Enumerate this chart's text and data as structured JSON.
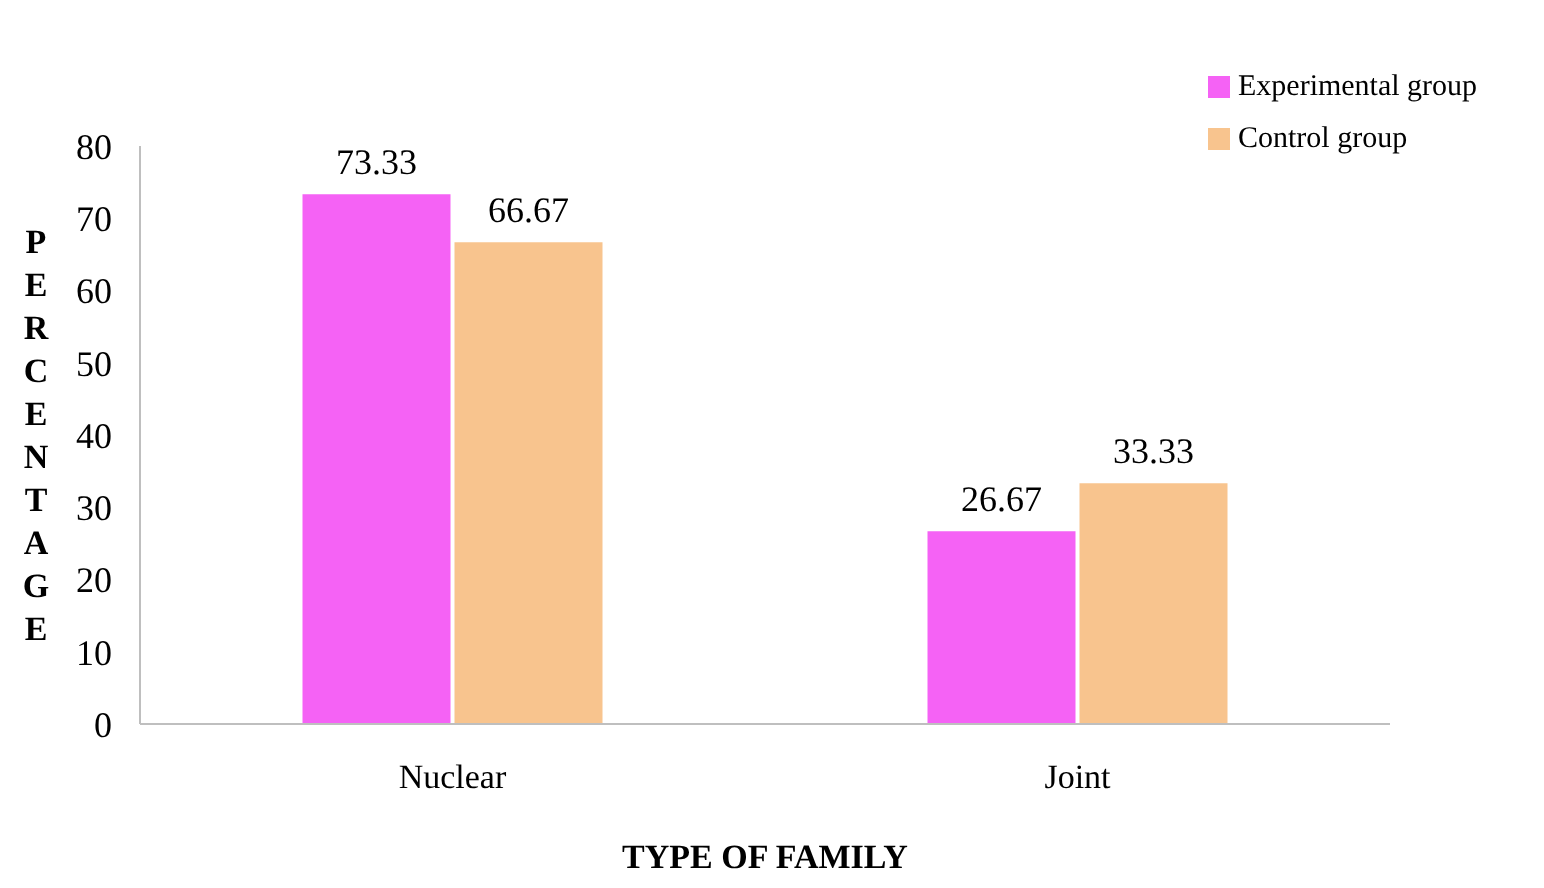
{
  "chart_data": {
    "type": "bar",
    "xlabel": "TYPE OF FAMILY",
    "ylabel": "PERCENTAGE",
    "categories": [
      "Nuclear",
      "Joint"
    ],
    "series": [
      {
        "name": "Experimental group",
        "color": "#f562f5",
        "values": [
          73.33,
          26.67
        ]
      },
      {
        "name": "Control group",
        "color": "#f8c48e",
        "values": [
          66.67,
          33.33
        ]
      }
    ],
    "ylim": [
      0,
      80
    ],
    "yticks": [
      0,
      10,
      20,
      30,
      40,
      50,
      60,
      70,
      80
    ],
    "data_labels": true,
    "legend": "top right"
  }
}
